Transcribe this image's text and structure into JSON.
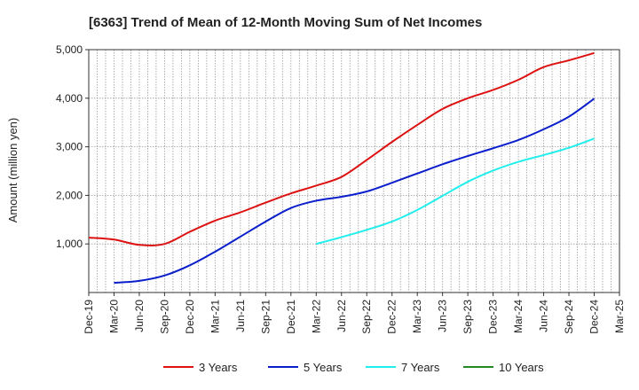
{
  "chart_data": {
    "type": "line",
    "title": "[6363]  Trend of Mean of 12-Month Moving Sum of Net Incomes",
    "ylabel": "Amount (million yen)",
    "xlabel": "",
    "ylim": [
      0,
      5000
    ],
    "yticks": [
      1000,
      2000,
      3000,
      4000,
      5000
    ],
    "ytick_labels": [
      "1,000",
      "2,000",
      "3,000",
      "4,000",
      "5,000"
    ],
    "categories": [
      "Dec-19",
      "Mar-20",
      "Jun-20",
      "Sep-20",
      "Dec-20",
      "Mar-21",
      "Jun-21",
      "Sep-21",
      "Dec-21",
      "Mar-22",
      "Jun-22",
      "Sep-22",
      "Dec-22",
      "Mar-23",
      "Jun-23",
      "Sep-23",
      "Dec-23",
      "Mar-24",
      "Jun-24",
      "Sep-24",
      "Dec-24",
      "Mar-25"
    ],
    "grid": true,
    "legend_position": "bottom",
    "series": [
      {
        "name": "3 Years",
        "color": "#dd1111",
        "values": [
          1130,
          1090,
          980,
          1000,
          1250,
          1480,
          1650,
          1850,
          2040,
          2200,
          2380,
          2730,
          3100,
          3450,
          3780,
          4000,
          4170,
          4380,
          4640,
          4780,
          4930,
          null
        ]
      },
      {
        "name": "5 Years",
        "color": "#0a1ecc",
        "values": [
          null,
          200,
          240,
          350,
          560,
          840,
          1150,
          1460,
          1740,
          1890,
          1970,
          2080,
          2260,
          2450,
          2640,
          2810,
          2970,
          3140,
          3360,
          3620,
          3990,
          null
        ]
      },
      {
        "name": "7 Years",
        "color": "#22eeee",
        "values": [
          null,
          null,
          null,
          null,
          null,
          null,
          null,
          null,
          null,
          1000,
          1140,
          1290,
          1460,
          1700,
          1990,
          2280,
          2510,
          2690,
          2830,
          2980,
          3170,
          null
        ]
      },
      {
        "name": "10 Years",
        "color": "#228822",
        "values": [
          null,
          null,
          null,
          null,
          null,
          null,
          null,
          null,
          null,
          null,
          null,
          null,
          null,
          null,
          null,
          null,
          null,
          null,
          null,
          null,
          null,
          null
        ]
      }
    ]
  }
}
